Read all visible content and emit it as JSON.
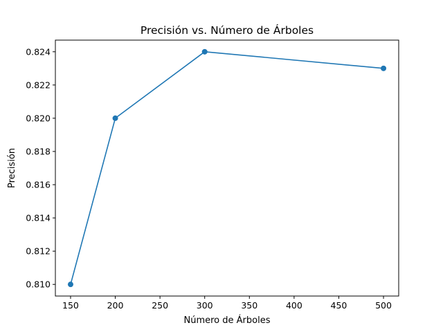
{
  "chart_data": {
    "type": "line",
    "title": "Precisión vs. Número de Árboles",
    "xlabel": "Número de Árboles",
    "ylabel": "Precisión",
    "x": [
      150,
      200,
      300,
      500
    ],
    "series": [
      {
        "values": [
          0.81,
          0.82,
          0.824,
          0.823
        ],
        "color": "#1f77b4",
        "marker": "circle"
      }
    ],
    "xlim": [
      133,
      517
    ],
    "ylim": [
      0.8093,
      0.8247
    ],
    "xticks": [
      150,
      200,
      250,
      300,
      350,
      400,
      450,
      500
    ],
    "yticks": [
      0.81,
      0.812,
      0.814,
      0.816,
      0.818,
      0.82,
      0.822,
      0.824
    ],
    "ytick_labels": [
      "0.810",
      "0.812",
      "0.814",
      "0.816",
      "0.818",
      "0.820",
      "0.822",
      "0.824"
    ],
    "grid": false,
    "legend": null
  }
}
